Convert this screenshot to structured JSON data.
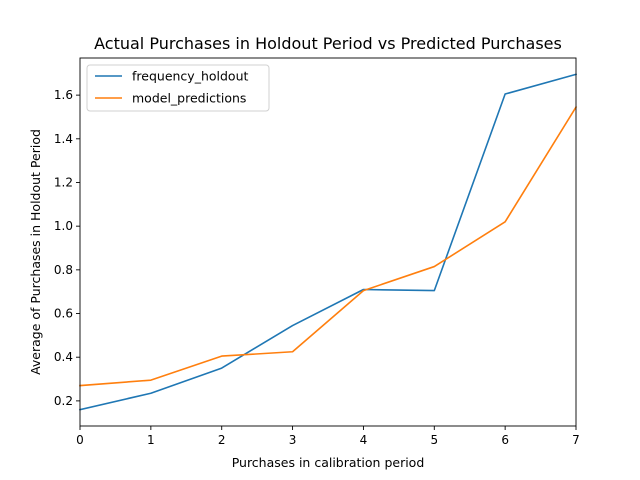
{
  "chart_data": {
    "type": "line",
    "title": "Actual Purchases in Holdout Period vs Predicted Purchases",
    "xlabel": "Purchases in calibration period",
    "ylabel": "Average of Purchases in Holdout Period",
    "x": [
      0,
      1,
      2,
      3,
      4,
      5,
      6,
      7
    ],
    "xlim": [
      0,
      7
    ],
    "ylim": [
      0.085,
      1.77
    ],
    "xticks": [
      "0",
      "1",
      "2",
      "3",
      "4",
      "5",
      "6",
      "7"
    ],
    "yticks": [
      "0.2",
      "0.4",
      "0.6",
      "0.8",
      "1.0",
      "1.2",
      "1.4",
      "1.6"
    ],
    "grid": false,
    "legend_position": "top-left",
    "series": [
      {
        "name": "frequency_holdout",
        "color": "#1f77b4",
        "values": [
          0.16,
          0.235,
          0.35,
          0.545,
          0.71,
          0.705,
          1.605,
          1.695
        ]
      },
      {
        "name": "model_predictions",
        "color": "#ff7f0e",
        "values": [
          0.27,
          0.295,
          0.405,
          0.425,
          0.705,
          0.815,
          1.02,
          1.545
        ]
      }
    ]
  }
}
